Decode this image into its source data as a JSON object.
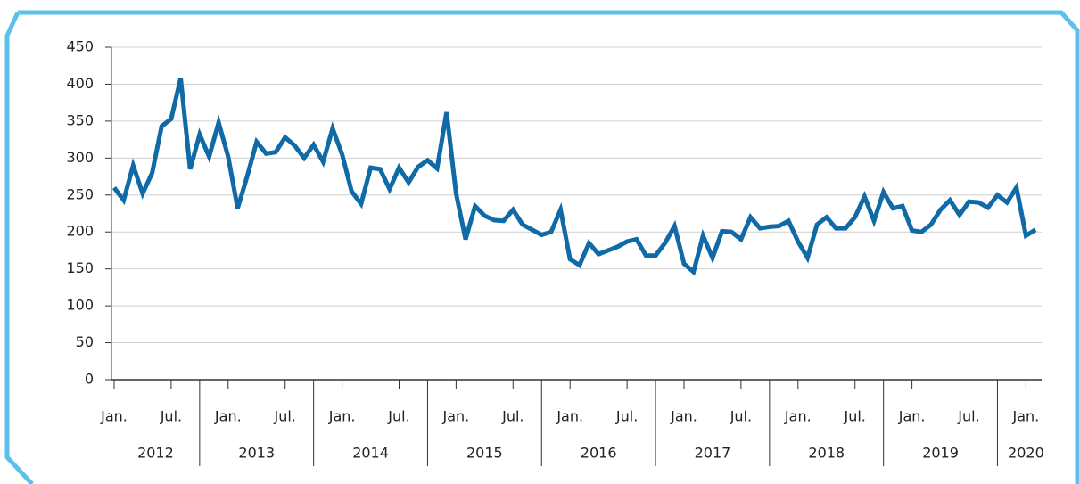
{
  "chart_data": {
    "type": "line",
    "categories": [
      "Jan.",
      null,
      null,
      null,
      null,
      null,
      "Jul.",
      null,
      null,
      null,
      null,
      null,
      "Jan.",
      null,
      null,
      null,
      null,
      null,
      "Jul.",
      null,
      null,
      null,
      null,
      null,
      "Jan.",
      null,
      null,
      null,
      null,
      null,
      "Jul.",
      null,
      null,
      null,
      null,
      null,
      "Jan.",
      null,
      null,
      null,
      null,
      null,
      "Jul.",
      null,
      null,
      null,
      null,
      null,
      "Jan.",
      null,
      null,
      null,
      null,
      null,
      "Jul.",
      null,
      null,
      null,
      null,
      null,
      "Jan.",
      null,
      null,
      null,
      null,
      null,
      "Jul.",
      null,
      null,
      null,
      null,
      null,
      "Jan.",
      null,
      null,
      null,
      null,
      null,
      "Jul.",
      null,
      null,
      null,
      null,
      null,
      "Jan.",
      null,
      null,
      null,
      null,
      null,
      "Jul.",
      null,
      null,
      null,
      null,
      null,
      "Jan.",
      null
    ],
    "years": [
      "2012",
      "2013",
      "2014",
      "2015",
      "2016",
      "2017",
      "2018",
      "2019",
      "2020"
    ],
    "values": [
      260,
      243,
      290,
      252,
      280,
      343,
      353,
      408,
      285,
      332,
      302,
      348,
      302,
      232,
      275,
      322,
      306,
      308,
      328,
      317,
      300,
      318,
      295,
      340,
      305,
      255,
      238,
      287,
      285,
      258,
      287,
      267,
      288,
      297,
      286,
      362,
      252,
      190,
      235,
      222,
      216,
      215,
      230,
      210,
      203,
      196,
      200,
      230,
      163,
      155,
      185,
      170,
      175,
      180,
      187,
      190,
      168,
      168,
      185,
      208,
      157,
      146,
      195,
      165,
      201,
      200,
      190,
      220,
      205,
      207,
      208,
      215,
      187,
      165,
      210,
      220,
      205,
      205,
      220,
      248,
      215,
      254,
      232,
      235,
      202,
      200,
      210,
      230,
      243,
      223,
      241,
      240,
      233,
      250,
      240,
      260,
      195,
      203
    ],
    "color": "#0f6aa6",
    "ylim": [
      0,
      450
    ],
    "yticks": [
      0,
      50,
      100,
      150,
      200,
      250,
      300,
      350,
      400,
      450
    ],
    "grid": true
  }
}
